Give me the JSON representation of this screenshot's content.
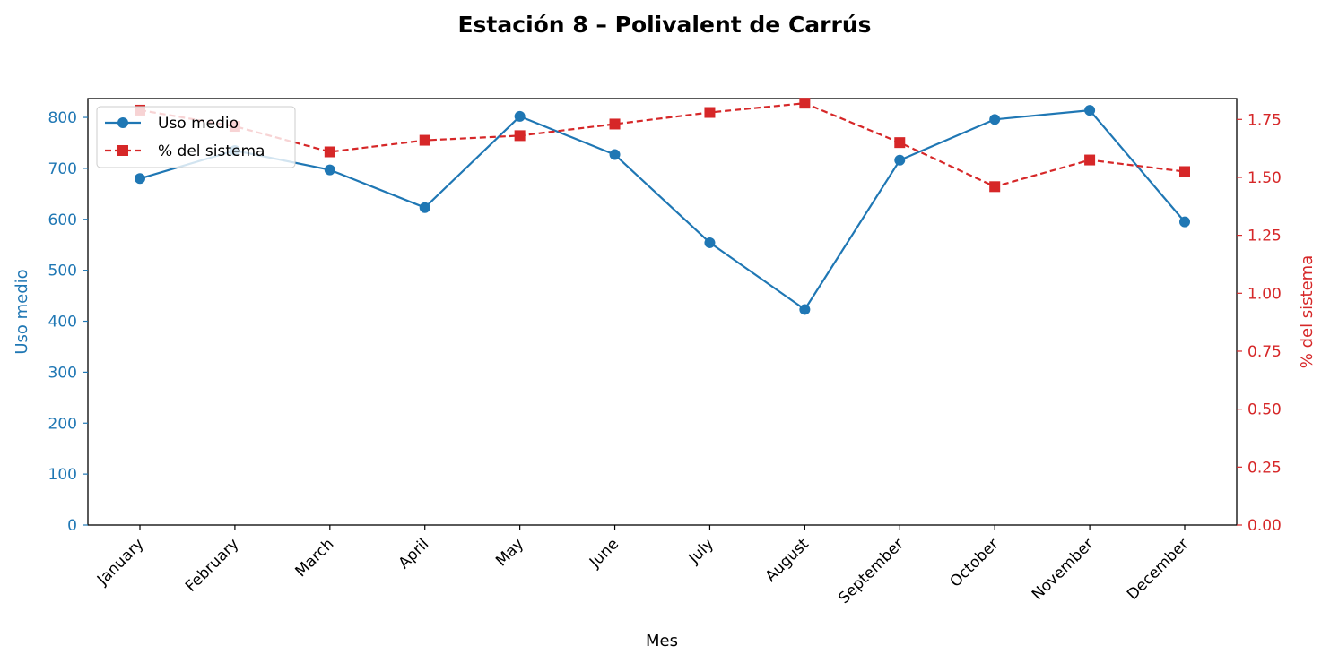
{
  "chart_data": {
    "type": "line",
    "title": "Estación 8 – Polivalent de Carrús",
    "xlabel": "Mes",
    "ylabel_left": "Uso medio",
    "ylabel_right": "% del sistema",
    "categories": [
      "January",
      "February",
      "March",
      "April",
      "May",
      "June",
      "July",
      "August",
      "September",
      "October",
      "November",
      "December"
    ],
    "ylim_left": [
      0,
      837
    ],
    "ylim_right": [
      0,
      1.84
    ],
    "yticks_left": [
      0,
      100,
      200,
      300,
      400,
      500,
      600,
      700,
      800
    ],
    "yticks_right": [
      0.0,
      0.25,
      0.5,
      0.75,
      1.0,
      1.25,
      1.5,
      1.75
    ],
    "yticks_right_labels": [
      "0.00",
      "0.25",
      "0.50",
      "0.75",
      "1.00",
      "1.25",
      "1.50",
      "1.75"
    ],
    "grid": false,
    "legend_position": "upper-left",
    "series": [
      {
        "name": "Uso medio",
        "axis": "left",
        "color": "#1f77b4",
        "linestyle": "solid",
        "marker": "circle",
        "values": [
          680,
          735,
          697,
          623,
          802,
          727,
          554,
          423,
          716,
          796,
          814,
          595
        ]
      },
      {
        "name": "% del sistema",
        "axis": "right",
        "color": "#d62728",
        "linestyle": "dashed",
        "marker": "square",
        "values": [
          1.79,
          1.72,
          1.61,
          1.66,
          1.68,
          1.73,
          1.78,
          1.82,
          1.65,
          1.46,
          1.575,
          1.525
        ]
      }
    ]
  }
}
